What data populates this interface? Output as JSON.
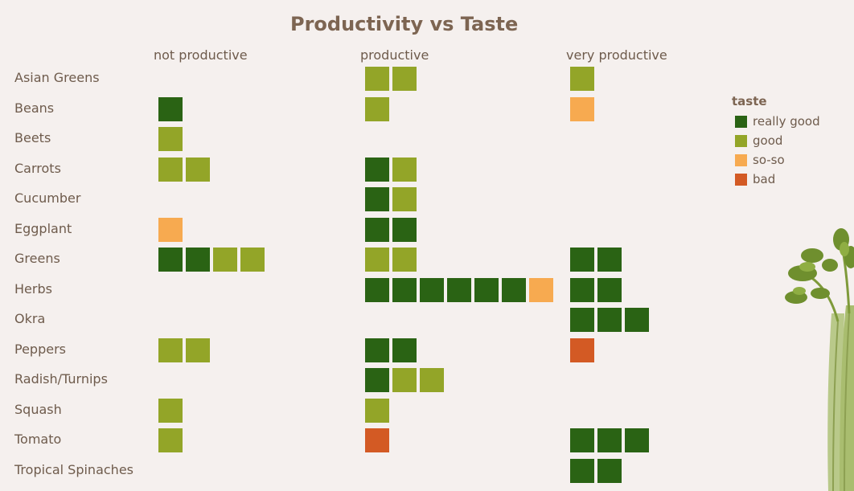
{
  "chart_data": {
    "type": "heatmap",
    "title": "Productivity vs Taste",
    "columns": [
      "not productive",
      "productive",
      "very productive"
    ],
    "rows": [
      {
        "label": "Asian Greens",
        "cells": [
          [],
          [
            "good",
            "good"
          ],
          [
            "good"
          ]
        ]
      },
      {
        "label": "Beans",
        "cells": [
          [
            "really good"
          ],
          [
            "good"
          ],
          [
            "so-so"
          ]
        ]
      },
      {
        "label": "Beets",
        "cells": [
          [
            "good"
          ],
          [],
          []
        ]
      },
      {
        "label": "Carrots",
        "cells": [
          [
            "good",
            "good"
          ],
          [
            "really good",
            "good"
          ],
          []
        ]
      },
      {
        "label": "Cucumber",
        "cells": [
          [],
          [
            "really good",
            "good"
          ],
          []
        ]
      },
      {
        "label": "Eggplant",
        "cells": [
          [
            "so-so"
          ],
          [
            "really good",
            "really good"
          ],
          []
        ]
      },
      {
        "label": "Greens",
        "cells": [
          [
            "really good",
            "really good",
            "good",
            "good"
          ],
          [
            "good",
            "good"
          ],
          [
            "really good",
            "really good"
          ]
        ]
      },
      {
        "label": "Herbs",
        "cells": [
          [],
          [
            "really good",
            "really good",
            "really good",
            "really good",
            "really good",
            "really good",
            "so-so"
          ],
          [
            "really good",
            "really good"
          ]
        ]
      },
      {
        "label": "Okra",
        "cells": [
          [],
          [],
          [
            "really good",
            "really good",
            "really good"
          ]
        ]
      },
      {
        "label": "Peppers",
        "cells": [
          [
            "good",
            "good"
          ],
          [
            "really good",
            "really good"
          ],
          [
            "bad"
          ]
        ]
      },
      {
        "label": "Radish/Turnips",
        "cells": [
          [],
          [
            "really good",
            "good",
            "good"
          ],
          []
        ]
      },
      {
        "label": "Squash",
        "cells": [
          [
            "good"
          ],
          [
            "good"
          ],
          []
        ]
      },
      {
        "label": "Tomato",
        "cells": [
          [
            "good"
          ],
          [
            "bad"
          ],
          [
            "really good",
            "really good",
            "really good"
          ]
        ]
      },
      {
        "label": "Tropical Spinaches",
        "cells": [
          [],
          [],
          [
            "really good",
            "really good"
          ]
        ]
      }
    ],
    "legend": {
      "title": "taste",
      "placement": "right",
      "items": [
        {
          "label": "really good",
          "color": "#2a6314"
        },
        {
          "label": "good",
          "color": "#93a528"
        },
        {
          "label": "so-so",
          "color": "#f7aa50"
        },
        {
          "label": "bad",
          "color": "#d35a24"
        }
      ]
    }
  },
  "illustration": "celery-icon"
}
